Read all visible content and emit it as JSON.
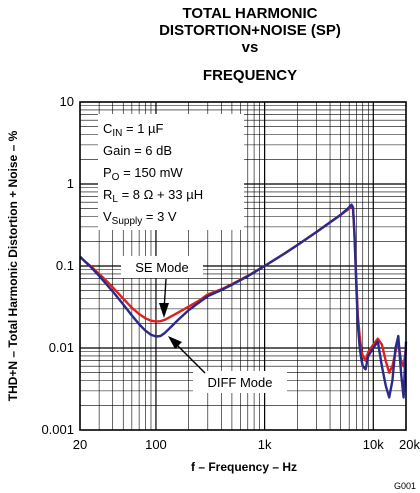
{
  "chart_data": {
    "type": "line",
    "title": [
      "TOTAL HARMONIC",
      "DISTORTION+NOISE (SP)",
      "vs",
      "FREQUENCY"
    ],
    "xlabel": "f – Frequency – Hz",
    "ylabel": "THD+N – Total Harmonic Distortion + Noise – %",
    "x_scale": "log",
    "y_scale": "log",
    "xlim": [
      20,
      20000
    ],
    "ylim": [
      0.001,
      10
    ],
    "x_ticks": [
      {
        "value": 20,
        "label": "20"
      },
      {
        "value": 100,
        "label": "100"
      },
      {
        "value": 1000,
        "label": "1k"
      },
      {
        "value": 10000,
        "label": "10k"
      },
      {
        "value": 20000,
        "label": "20k"
      }
    ],
    "y_ticks": [
      {
        "value": 10,
        "label": "10"
      },
      {
        "value": 1,
        "label": "1"
      },
      {
        "value": 0.1,
        "label": "0.1"
      },
      {
        "value": 0.01,
        "label": "0.01"
      },
      {
        "value": 0.001,
        "label": "0.001"
      }
    ],
    "grid": true,
    "conditions": {
      "cin": {
        "main": "C",
        "sub": "IN",
        "rest": " = 1 µF"
      },
      "gain": {
        "main": "Gain = 6 dB",
        "sub": "",
        "rest": ""
      },
      "po": {
        "main": "P",
        "sub": "O",
        "rest": " = 150 mW"
      },
      "rl": {
        "main": "R",
        "sub": "L",
        "rest": " = 8 Ω + 33 µH"
      },
      "vs": {
        "main": "V",
        "sub": "Supply",
        "rest": " = 3 V"
      }
    },
    "annotations": [
      {
        "label": "SE Mode",
        "series": "se"
      },
      {
        "label": "DIFF Mode",
        "series": "diff"
      }
    ],
    "series": [
      {
        "key": "se",
        "color": "#e0201c",
        "x": [
          20,
          22,
          25,
          30,
          35,
          40,
          50,
          60,
          70,
          80,
          90,
          100,
          110,
          120,
          140,
          160,
          200,
          250,
          300,
          400,
          500,
          700,
          1000,
          1500,
          2000,
          3000,
          4000,
          5000,
          5500,
          6000,
          6300,
          6500,
          6700,
          7000,
          7200,
          7500,
          7800,
          8000,
          8500,
          9000,
          10000,
          11000,
          12000,
          13000,
          14000,
          15000,
          16000,
          17000,
          18000,
          19000,
          20000
        ],
        "y": [
          0.13,
          0.115,
          0.1,
          0.08,
          0.066,
          0.055,
          0.04,
          0.031,
          0.026,
          0.023,
          0.0215,
          0.021,
          0.0212,
          0.022,
          0.0245,
          0.027,
          0.032,
          0.038,
          0.045,
          0.052,
          0.06,
          0.076,
          0.1,
          0.14,
          0.18,
          0.26,
          0.34,
          0.42,
          0.46,
          0.5,
          0.53,
          0.5,
          0.25,
          0.06,
          0.025,
          0.014,
          0.009,
          0.008,
          0.007,
          0.009,
          0.011,
          0.013,
          0.011,
          0.007,
          0.005,
          0.006,
          0.009,
          0.012,
          0.007,
          0.006,
          0.01
        ]
      },
      {
        "key": "diff",
        "color": "#2a2a8a",
        "x": [
          20,
          22,
          25,
          30,
          35,
          40,
          50,
          60,
          70,
          80,
          90,
          100,
          110,
          120,
          140,
          160,
          200,
          250,
          300,
          400,
          500,
          700,
          1000,
          1500,
          2000,
          3000,
          4000,
          5000,
          5500,
          6000,
          6300,
          6500,
          6700,
          7000,
          7200,
          7500,
          7800,
          8000,
          8500,
          9000,
          10000,
          11000,
          12000,
          13000,
          14000,
          15000,
          16000,
          17000,
          18000,
          19000,
          20000
        ],
        "y": [
          0.13,
          0.115,
          0.098,
          0.076,
          0.06,
          0.049,
          0.034,
          0.025,
          0.0195,
          0.0163,
          0.0145,
          0.0138,
          0.014,
          0.0152,
          0.0185,
          0.022,
          0.029,
          0.036,
          0.043,
          0.051,
          0.059,
          0.075,
          0.1,
          0.14,
          0.18,
          0.26,
          0.34,
          0.42,
          0.47,
          0.52,
          0.56,
          0.52,
          0.26,
          0.05,
          0.02,
          0.01,
          0.007,
          0.006,
          0.0055,
          0.008,
          0.01,
          0.012,
          0.006,
          0.0035,
          0.0025,
          0.004,
          0.01,
          0.014,
          0.005,
          0.0025,
          0.012
        ]
      }
    ],
    "figure_code": "G001"
  }
}
